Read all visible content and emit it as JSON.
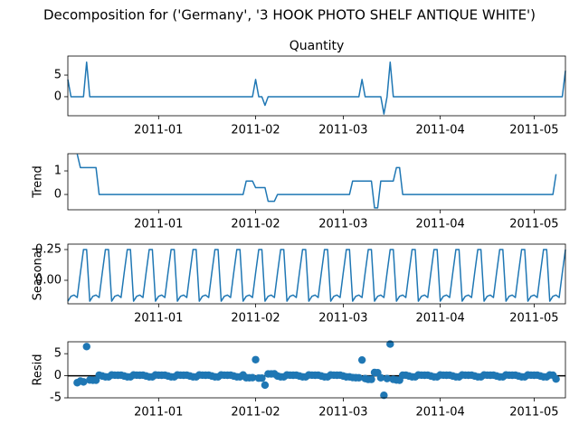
{
  "title": "Decomposition for ('Germany', '3 HOOK PHOTO SHELF ANTIQUE WHITE')",
  "chart_data": [
    {
      "type": "line",
      "title": "Quantity",
      "color": "#1f77b4",
      "xlim": [
        0,
        159
      ],
      "xticks": [
        {
          "value": 29,
          "label": "2011-01"
        },
        {
          "value": 60,
          "label": "2011-02"
        },
        {
          "value": 88,
          "label": "2011-03"
        },
        {
          "value": 119,
          "label": "2011-04"
        },
        {
          "value": 149,
          "label": "2011-05"
        }
      ],
      "ylim": [
        -4.4,
        9.4
      ],
      "yticks": [
        0,
        5
      ],
      "values": [
        4,
        0,
        0,
        0,
        0,
        0,
        8,
        0,
        0,
        0,
        0,
        0,
        0,
        0,
        0,
        0,
        0,
        0,
        0,
        0,
        0,
        0,
        0,
        0,
        0,
        0,
        0,
        0,
        0,
        0,
        0,
        0,
        0,
        0,
        0,
        0,
        0,
        0,
        0,
        0,
        0,
        0,
        0,
        0,
        0,
        0,
        0,
        0,
        0,
        0,
        0,
        0,
        0,
        0,
        0,
        0,
        0,
        0,
        0,
        0,
        4,
        0,
        0,
        -2,
        0,
        0,
        0,
        0,
        0,
        0,
        0,
        0,
        0,
        0,
        0,
        0,
        0,
        0,
        0,
        0,
        0,
        0,
        0,
        0,
        0,
        0,
        0,
        0,
        0,
        0,
        0,
        0,
        0,
        0,
        4,
        0,
        0,
        0,
        0,
        0,
        0,
        -4,
        0,
        8,
        0,
        0,
        0,
        0,
        0,
        0,
        0,
        0,
        0,
        0,
        0,
        0,
        0,
        0,
        0,
        0,
        0,
        0,
        0,
        0,
        0,
        0,
        0,
        0,
        0,
        0,
        0,
        0,
        0,
        0,
        0,
        0,
        0,
        0,
        0,
        0,
        0,
        0,
        0,
        0,
        0,
        0,
        0,
        0,
        0,
        0,
        0,
        0,
        0,
        0,
        0,
        0,
        0,
        0,
        0,
        6
      ]
    },
    {
      "type": "line",
      "y_label": "Trend",
      "color": "#1f77b4",
      "xlim": [
        0,
        159
      ],
      "xticks": [
        {
          "value": 29,
          "label": "2011-01"
        },
        {
          "value": 60,
          "label": "2011-02"
        },
        {
          "value": 88,
          "label": "2011-03"
        },
        {
          "value": 119,
          "label": "2011-04"
        },
        {
          "value": 149,
          "label": "2011-05"
        }
      ],
      "ylim": [
        -0.65,
        1.73
      ],
      "yticks": [
        0,
        1
      ],
      "values": [
        null,
        null,
        null,
        1.71,
        1.14,
        1.14,
        1.14,
        1.14,
        1.14,
        1.14,
        0,
        0,
        0,
        0,
        0,
        0,
        0,
        0,
        0,
        0,
        0,
        0,
        0,
        0,
        0,
        0,
        0,
        0,
        0,
        0,
        0,
        0,
        0,
        0,
        0,
        0,
        0,
        0,
        0,
        0,
        0,
        0,
        0,
        0,
        0,
        0,
        0,
        0,
        0,
        0,
        0,
        0,
        0,
        0,
        0,
        0,
        0,
        0.57,
        0.57,
        0.57,
        0.29,
        0.29,
        0.29,
        0.29,
        -0.29,
        -0.29,
        -0.29,
        0,
        0,
        0,
        0,
        0,
        0,
        0,
        0,
        0,
        0,
        0,
        0,
        0,
        0,
        0,
        0,
        0,
        0,
        0,
        0,
        0,
        0,
        0,
        0,
        0.57,
        0.57,
        0.57,
        0.57,
        0.57,
        0.57,
        0.57,
        -0.57,
        -0.57,
        0.57,
        0.57,
        0.57,
        0.57,
        0.57,
        1.14,
        1.14,
        0,
        0,
        0,
        0,
        0,
        0,
        0,
        0,
        0,
        0,
        0,
        0,
        0,
        0,
        0,
        0,
        0,
        0,
        0,
        0,
        0,
        0,
        0,
        0,
        0,
        0,
        0,
        0,
        0,
        0,
        0,
        0,
        0,
        0,
        0,
        0,
        0,
        0,
        0,
        0,
        0,
        0,
        0,
        0,
        0,
        0,
        0,
        0,
        0,
        0.86,
        null,
        null,
        null
      ]
    },
    {
      "type": "line",
      "y_label": "Seasonal",
      "color": "#1f77b4",
      "xlim": [
        0,
        159
      ],
      "xticks": [
        {
          "value": 29,
          "label": "2011-01"
        },
        {
          "value": 60,
          "label": "2011-02"
        },
        {
          "value": 88,
          "label": "2011-03"
        },
        {
          "value": 119,
          "label": "2011-04"
        },
        {
          "value": 149,
          "label": "2011-05"
        }
      ],
      "ylim": [
        -0.191,
        0.294
      ],
      "yticks": [
        {
          "value": 0,
          "label": "0.00"
        },
        0.25
      ],
      "values": [
        -0.17,
        -0.13,
        -0.12,
        -0.14,
        0.06,
        0.25,
        0.25,
        -0.17,
        -0.13,
        -0.12,
        -0.14,
        0.06,
        0.25,
        0.25,
        -0.17,
        -0.13,
        -0.12,
        -0.14,
        0.06,
        0.25,
        0.25,
        -0.17,
        -0.13,
        -0.12,
        -0.14,
        0.06,
        0.25,
        0.25,
        -0.17,
        -0.13,
        -0.12,
        -0.14,
        0.06,
        0.25,
        0.25,
        -0.17,
        -0.13,
        -0.12,
        -0.14,
        0.06,
        0.25,
        0.25,
        -0.17,
        -0.13,
        -0.12,
        -0.14,
        0.06,
        0.25,
        0.25,
        -0.17,
        -0.13,
        -0.12,
        -0.14,
        0.06,
        0.25,
        0.25,
        -0.17,
        -0.13,
        -0.12,
        -0.14,
        0.06,
        0.25,
        0.25,
        -0.17,
        -0.13,
        -0.12,
        -0.14,
        0.06,
        0.25,
        0.25,
        -0.17,
        -0.13,
        -0.12,
        -0.14,
        0.06,
        0.25,
        0.25,
        -0.17,
        -0.13,
        -0.12,
        -0.14,
        0.06,
        0.25,
        0.25,
        -0.17,
        -0.13,
        -0.12,
        -0.14,
        0.06,
        0.25,
        0.25,
        -0.17,
        -0.13,
        -0.12,
        -0.14,
        0.06,
        0.25,
        0.25,
        -0.17,
        -0.13,
        -0.12,
        -0.14,
        0.06,
        0.25,
        0.25,
        -0.17,
        -0.13,
        -0.12,
        -0.14,
        0.06,
        0.25,
        0.25,
        -0.17,
        -0.13,
        -0.12,
        -0.14,
        0.06,
        0.25,
        0.25,
        -0.17,
        -0.13,
        -0.12,
        -0.14,
        0.06,
        0.25,
        0.25,
        -0.17,
        -0.13,
        -0.12,
        -0.14,
        0.06,
        0.25,
        0.25,
        -0.17,
        -0.13,
        -0.12,
        -0.14,
        0.06,
        0.25,
        0.25,
        -0.17,
        -0.13,
        -0.12,
        -0.14,
        0.06,
        0.25,
        0.25,
        -0.17,
        -0.13,
        -0.12,
        -0.14,
        0.06,
        0.25,
        0.25,
        -0.17,
        -0.13,
        -0.12,
        -0.14,
        0.06,
        0.25
      ]
    },
    {
      "type": "scatter",
      "y_label": "Resid",
      "color": "#1f77b4",
      "baseline": 0,
      "xlim": [
        0,
        159
      ],
      "xticks": [
        {
          "value": 29,
          "label": "2011-01"
        },
        {
          "value": 60,
          "label": "2011-02"
        },
        {
          "value": 88,
          "label": "2011-03"
        },
        {
          "value": 119,
          "label": "2011-04"
        },
        {
          "value": 149,
          "label": "2011-05"
        }
      ],
      "ylim": [
        -5,
        7.7
      ],
      "yticks": [
        -5,
        0,
        5
      ],
      "values": [
        null,
        null,
        null,
        -1.57,
        -1.2,
        -1.39,
        6.61,
        -0.97,
        -1.01,
        -1.02,
        0.14,
        -0.06,
        -0.25,
        -0.25,
        0.17,
        0.13,
        0.12,
        0.14,
        -0.06,
        -0.25,
        -0.25,
        0.17,
        0.13,
        0.12,
        0.14,
        -0.06,
        -0.25,
        -0.25,
        0.17,
        0.13,
        0.12,
        0.14,
        -0.06,
        -0.25,
        -0.25,
        0.17,
        0.13,
        0.12,
        0.14,
        -0.06,
        -0.25,
        -0.25,
        0.17,
        0.13,
        0.12,
        0.14,
        -0.06,
        -0.25,
        -0.25,
        0.17,
        0.13,
        0.12,
        0.14,
        -0.06,
        -0.25,
        -0.25,
        0.17,
        -0.44,
        -0.45,
        -0.43,
        3.65,
        -0.54,
        -0.54,
        -2.12,
        0.42,
        0.41,
        0.43,
        -0.06,
        -0.25,
        -0.25,
        0.17,
        0.13,
        0.12,
        0.14,
        -0.06,
        -0.25,
        -0.25,
        0.17,
        0.13,
        0.12,
        0.14,
        -0.06,
        -0.25,
        -0.25,
        0.17,
        0.13,
        0.12,
        0.14,
        -0.06,
        -0.25,
        -0.25,
        -0.4,
        -0.44,
        -0.45,
        3.57,
        -0.63,
        -0.82,
        -0.82,
        0.74,
        0.7,
        -0.45,
        -4.43,
        -0.63,
        7.18,
        -0.82,
        -0.97,
        -1.01,
        0.12,
        0.14,
        -0.06,
        -0.25,
        -0.25,
        0.17,
        0.13,
        0.12,
        0.14,
        -0.06,
        -0.25,
        -0.25,
        0.17,
        0.13,
        0.12,
        0.14,
        -0.06,
        -0.25,
        -0.25,
        0.17,
        0.13,
        0.12,
        0.14,
        -0.06,
        -0.25,
        -0.25,
        0.17,
        0.13,
        0.12,
        0.14,
        -0.06,
        -0.25,
        -0.25,
        0.17,
        0.13,
        0.12,
        0.14,
        -0.06,
        -0.25,
        -0.25,
        0.17,
        0.13,
        0.12,
        0.14,
        -0.06,
        -0.25,
        -0.25,
        0.17,
        0.13,
        -0.74,
        null,
        null,
        null
      ]
    }
  ]
}
